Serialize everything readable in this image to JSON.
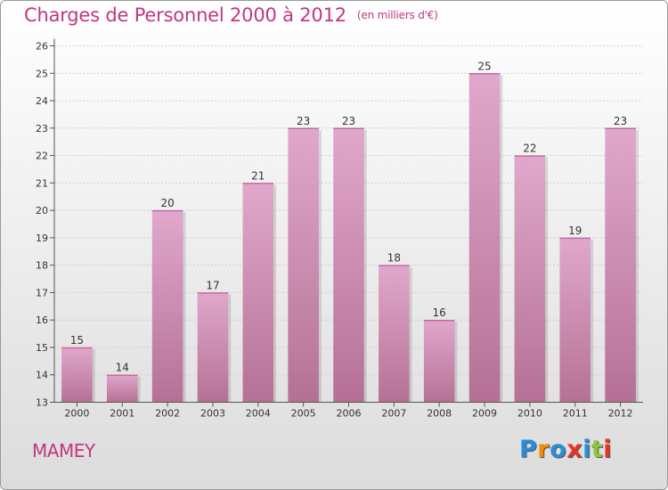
{
  "header": {
    "title": "Charges de Personnel 2000 à 2012",
    "unit": "(en milliers d'€)"
  },
  "footer": {
    "commune": "MAMEY",
    "logo_letters": [
      "P",
      "r",
      "o",
      "x",
      "i",
      "t",
      "i"
    ],
    "logo_colors": [
      "#2a8ddc",
      "#f08a00",
      "#2a8ddc",
      "#e8332a",
      "#2a8ddc",
      "#8cc63f",
      "#e8332a"
    ]
  },
  "colors": {
    "accent": "#c0387e",
    "bar_top": "#e0a8cc",
    "bar_bottom": "#b57195"
  },
  "chart_data": {
    "type": "bar",
    "categories": [
      "2000",
      "2001",
      "2002",
      "2003",
      "2004",
      "2005",
      "2006",
      "2007",
      "2008",
      "2009",
      "2010",
      "2011",
      "2012"
    ],
    "values": [
      15,
      14,
      20,
      17,
      21,
      23,
      23,
      18,
      16,
      25,
      22,
      19,
      23
    ],
    "value_labels": [
      "15",
      "14",
      "20",
      "17",
      "21",
      "23",
      "23",
      "18",
      "16",
      "25",
      "22",
      "19",
      "23"
    ],
    "yticks": [
      "13",
      "14",
      "15",
      "16",
      "17",
      "18",
      "19",
      "20",
      "21",
      "22",
      "23",
      "24",
      "25",
      "26"
    ],
    "ylim": [
      13,
      26
    ],
    "grid": true,
    "legend": "none"
  }
}
